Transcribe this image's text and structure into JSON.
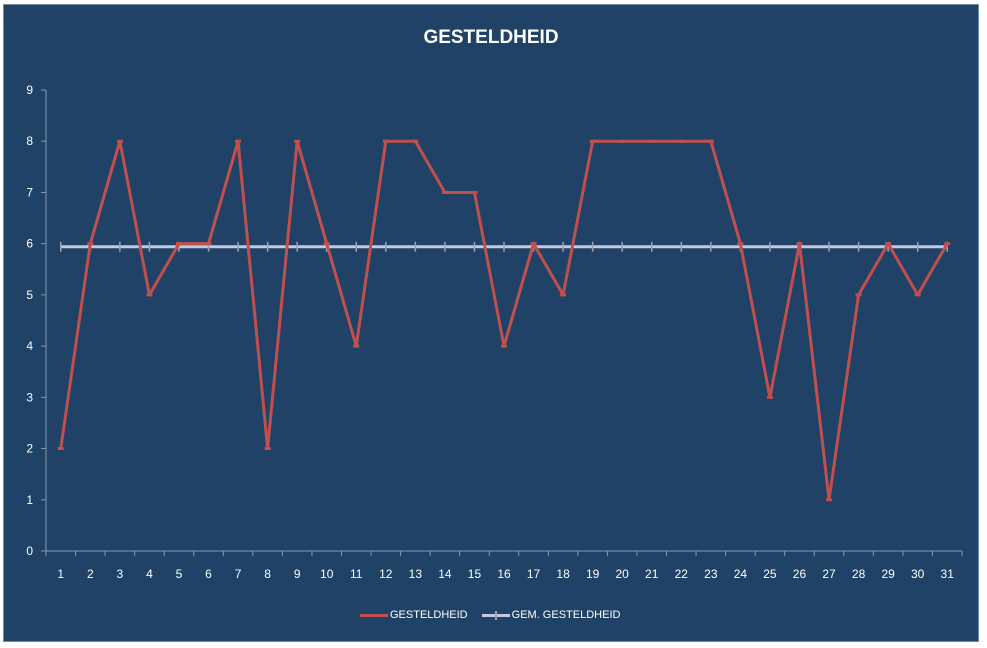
{
  "chart_data": {
    "type": "line",
    "title": "GESTELDHEID",
    "categories": [
      "1",
      "2",
      "3",
      "4",
      "5",
      "6",
      "7",
      "8",
      "9",
      "10",
      "11",
      "12",
      "13",
      "14",
      "15",
      "16",
      "17",
      "18",
      "19",
      "20",
      "21",
      "22",
      "23",
      "24",
      "25",
      "26",
      "27",
      "28",
      "29",
      "30",
      "31"
    ],
    "series": [
      {
        "name": "GESTELDHEID",
        "color": "#c0504d",
        "values": [
          2,
          6,
          8,
          5,
          6,
          6,
          8,
          2,
          8,
          6,
          4,
          8,
          8,
          7,
          7,
          4,
          6,
          5,
          8,
          8,
          8,
          8,
          8,
          6,
          3,
          6,
          1,
          5,
          6,
          5,
          6
        ]
      },
      {
        "name": "GEM. GESTELDHEID",
        "color": "#c5c8e0",
        "values": [
          5.94,
          5.94,
          5.94,
          5.94,
          5.94,
          5.94,
          5.94,
          5.94,
          5.94,
          5.94,
          5.94,
          5.94,
          5.94,
          5.94,
          5.94,
          5.94,
          5.94,
          5.94,
          5.94,
          5.94,
          5.94,
          5.94,
          5.94,
          5.94,
          5.94,
          5.94,
          5.94,
          5.94,
          5.94,
          5.94,
          5.94
        ]
      }
    ],
    "y_ticks": [
      "0",
      "1",
      "2",
      "3",
      "4",
      "5",
      "6",
      "7",
      "8",
      "9"
    ],
    "ylim": [
      0,
      9
    ],
    "grid": false,
    "legend_position": "bottom",
    "background_color": "#1f4266",
    "axis_color": "#8a9bb0"
  }
}
